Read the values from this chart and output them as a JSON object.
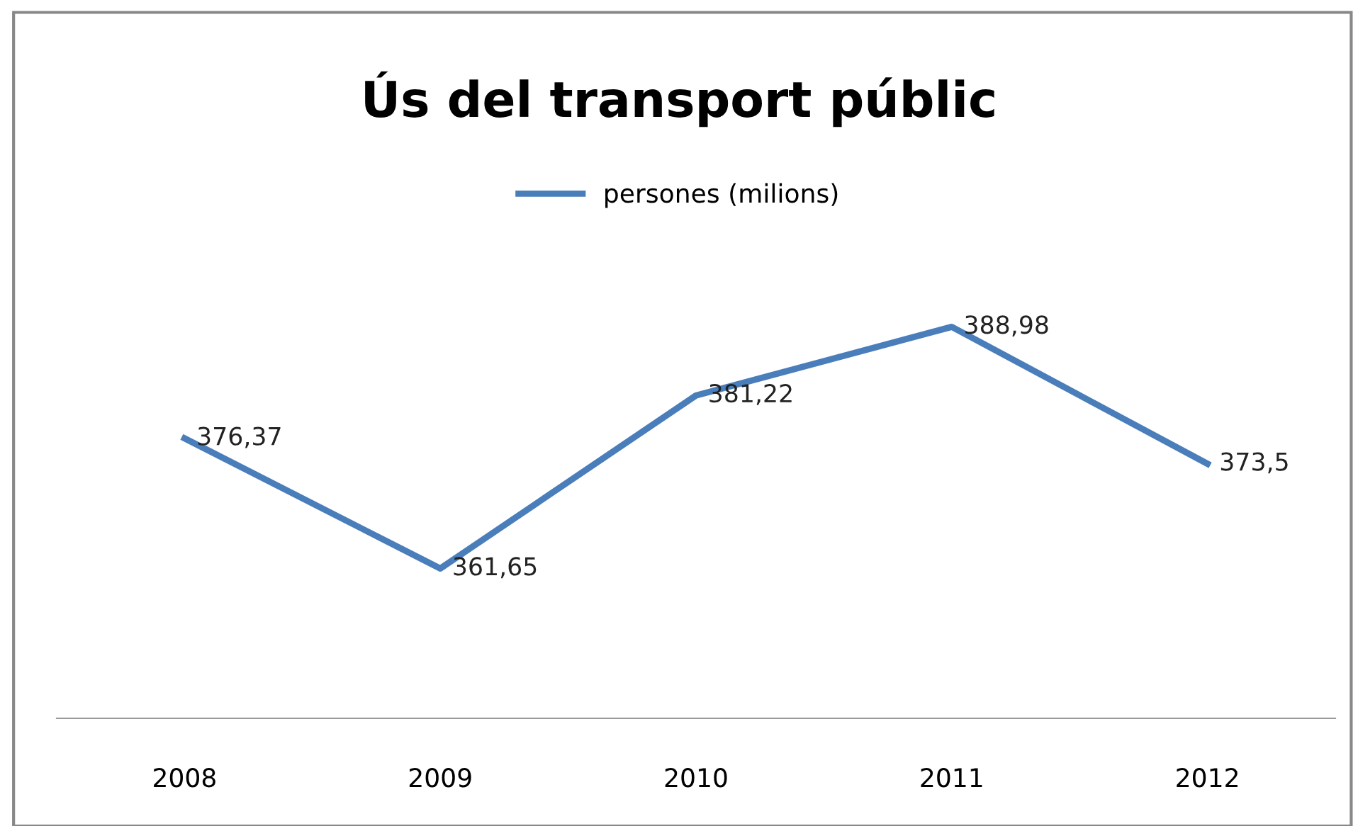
{
  "chart_data": {
    "type": "line",
    "title": "Ús del transport públic",
    "categories": [
      "2008",
      "2009",
      "2010",
      "2011",
      "2012"
    ],
    "series": [
      {
        "name": "persones (milions)",
        "color": "#4a7ebb",
        "values": [
          376.37,
          361.65,
          381.22,
          388.98,
          373.5
        ],
        "value_labels": [
          "376,37",
          "361,65",
          "381,22",
          "388,98",
          "373,5"
        ]
      }
    ],
    "legend": "top",
    "grid": false,
    "marker": "none",
    "line_style": "solid"
  }
}
